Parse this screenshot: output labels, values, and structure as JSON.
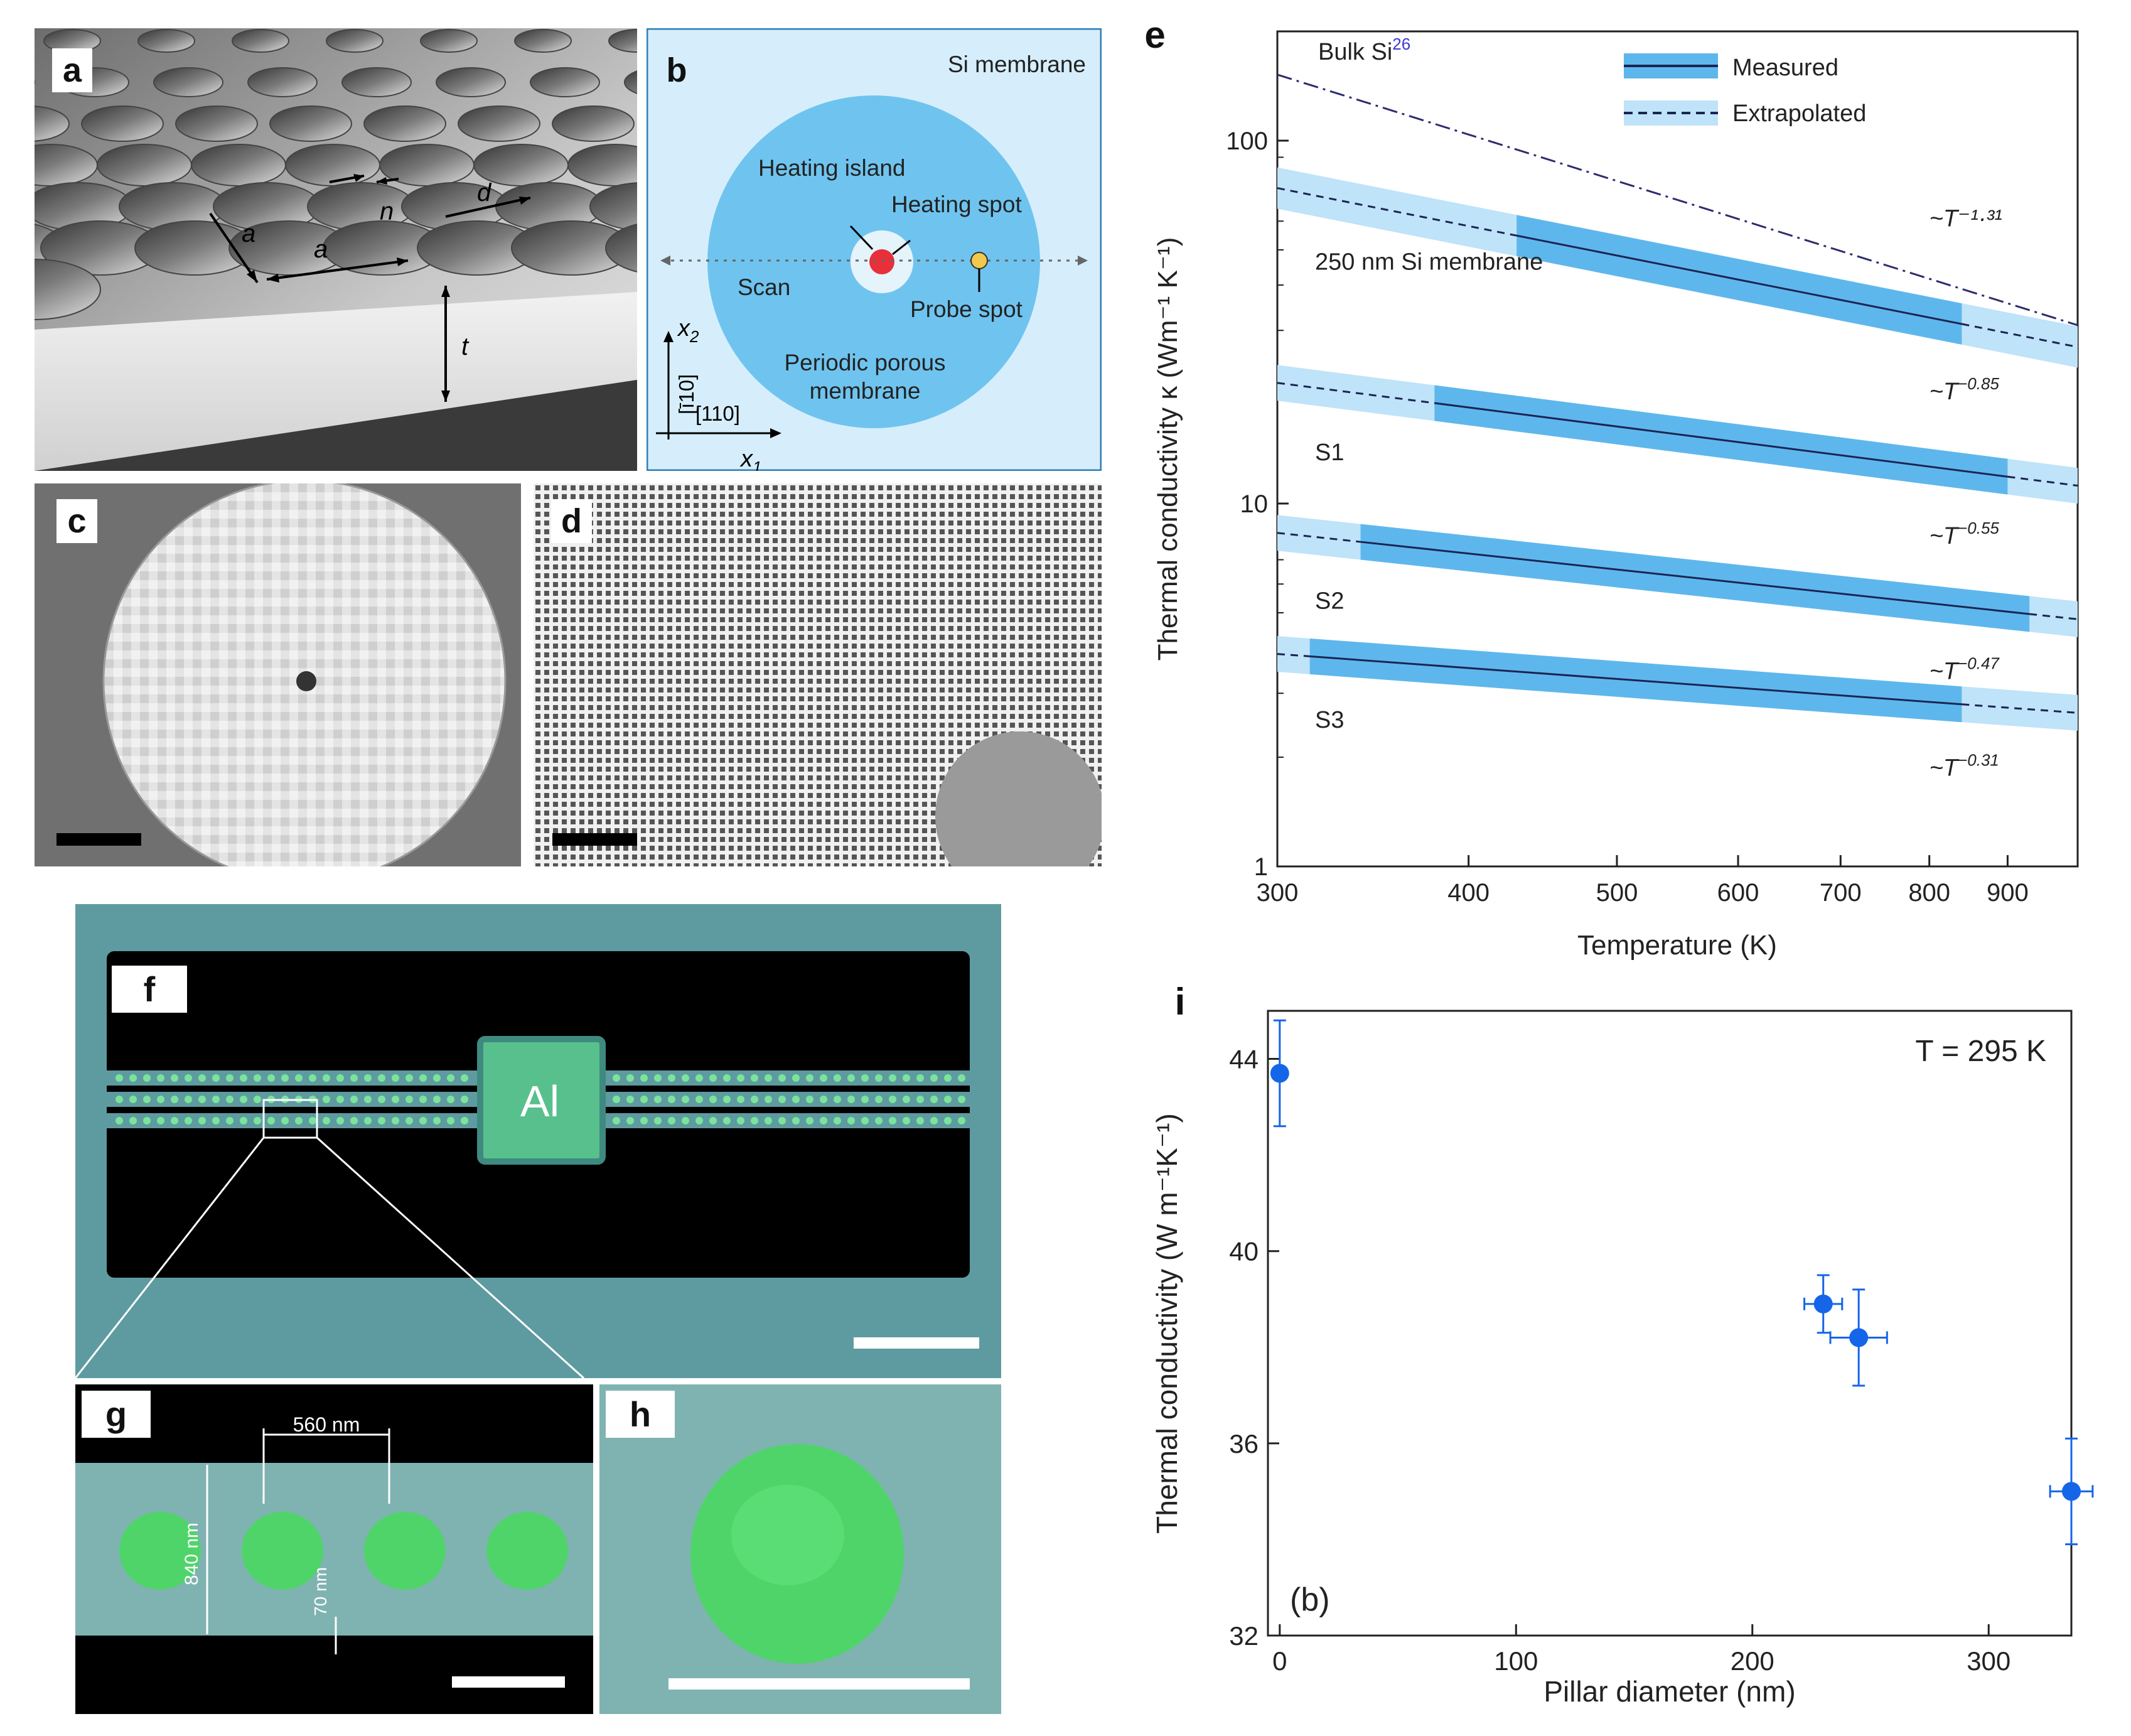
{
  "panel_labels": {
    "a": "a",
    "b": "b",
    "c": "c",
    "d": "d",
    "e": "e",
    "f": "f",
    "g": "g",
    "h": "h",
    "i": "i"
  },
  "panel_a": {
    "labels": {
      "a1": "a",
      "a2": "a",
      "n": "n",
      "d": "d",
      "t": "t"
    }
  },
  "panel_b": {
    "title": "Si membrane",
    "heating_island": "Heating island",
    "heating_spot": "Heating spot",
    "scan": "Scan",
    "probe_spot": "Probe spot",
    "porous_line1": "Periodic porous",
    "porous_line2": "membrane",
    "axis_x2": "x",
    "axis_x2_sub": "2",
    "axis_x1": "x",
    "axis_x1_sub": "1",
    "dir_110bar": "[ī10]",
    "dir_110": "[110]",
    "colors": {
      "bg": "#d6eefb",
      "disk": "#6fc4ef",
      "heat": "#e8303a",
      "probe": "#f2c94c"
    }
  },
  "panel_f": {
    "al_label": "Al"
  },
  "panel_g": {
    "pitch": "560 nm",
    "width": "840 nm",
    "gap": "70 nm"
  },
  "chart_data": [
    {
      "type": "line",
      "panel": "e",
      "xlabel": "Temperature (K)",
      "ylabel": "Thermal conductivity κ (Wm⁻¹ K⁻¹)",
      "xscale": "log",
      "yscale": "log",
      "xlim": [
        300,
        1000
      ],
      "ylim": [
        1,
        200
      ],
      "xticks": [
        300,
        400,
        500,
        600,
        700,
        800,
        900
      ],
      "xtick_labels": [
        "300",
        "400",
        "500",
        "600",
        "700",
        "800",
        "900"
      ],
      "yticks": [
        1,
        10,
        100
      ],
      "ytick_labels": [
        "1",
        "10",
        "100"
      ],
      "legend": {
        "position": "top-center",
        "entries": [
          "Measured",
          "Extrapolated"
        ]
      },
      "bulk": {
        "name": "Bulk Si",
        "ref": "26",
        "exponent": "~T⁻¹·³¹",
        "x": [
          300,
          1000
        ],
        "y": [
          152,
          31
        ]
      },
      "series": [
        {
          "name": "250 nm Si membrane",
          "exponent_base": "~T",
          "exponent": "−0.85",
          "x": [
            300,
            1000
          ],
          "y": [
            74,
            27
          ],
          "measured": [
            430,
            840
          ],
          "band": 0.14
        },
        {
          "name": "S1",
          "exponent_base": "~T",
          "exponent": "−0.55",
          "x": [
            300,
            1000
          ],
          "y": [
            21.5,
            11.2
          ],
          "measured": [
            380,
            900
          ],
          "band": 0.12
        },
        {
          "name": "S2",
          "exponent_base": "~T",
          "exponent": "−0.47",
          "x": [
            300,
            1000
          ],
          "y": [
            8.3,
            4.8
          ],
          "measured": [
            340,
            930
          ],
          "band": 0.12
        },
        {
          "name": "S3",
          "exponent_base": "~T",
          "exponent": "−0.31",
          "x": [
            300,
            1000
          ],
          "y": [
            3.85,
            2.65
          ],
          "measured": [
            315,
            840
          ],
          "band": 0.12
        }
      ],
      "colors": {
        "band": "#9fd3f3",
        "measured_band": "#5eb7ec",
        "line": "#1b2454",
        "bulk": "#2e2c6e"
      }
    },
    {
      "type": "scatter",
      "panel": "i",
      "xlabel": "Pillar diameter (nm)",
      "ylabel": "Thermal conductivity (W m⁻¹K⁻¹)",
      "xlim": [
        -5,
        335
      ],
      "ylim": [
        32,
        45
      ],
      "xticks": [
        0,
        100,
        200,
        300
      ],
      "xtick_labels": [
        "0",
        "100",
        "200",
        "300"
      ],
      "yticks": [
        32,
        36,
        40,
        44
      ],
      "ytick_labels": [
        "32",
        "36",
        "40",
        "44"
      ],
      "annotation": "T = 295 K",
      "sublabel": "(b)",
      "points": [
        {
          "x": 0,
          "y": 43.7,
          "xerr": 0,
          "yerr": 1.1
        },
        {
          "x": 230,
          "y": 38.9,
          "xerr": 8,
          "yerr": 0.6
        },
        {
          "x": 245,
          "y": 38.2,
          "xerr": 12,
          "yerr": 1.0
        },
        {
          "x": 335,
          "y": 35.0,
          "xerr": 9,
          "yerr": 1.1
        }
      ],
      "colors": {
        "point": "#1565e8"
      }
    }
  ]
}
